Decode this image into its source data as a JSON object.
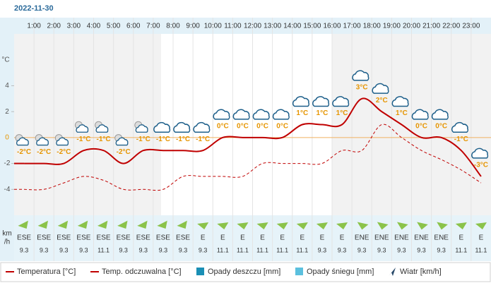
{
  "chart_data": {
    "type": "line",
    "title": "2022-11-30",
    "hour_labels": [
      "1:00",
      "2:00",
      "3:00",
      "4:00",
      "5:00",
      "6:00",
      "7:00",
      "8:00",
      "9:00",
      "10:00",
      "11:00",
      "12:00",
      "13:00",
      "14:00",
      "15:00",
      "16:00",
      "17:00",
      "18:00",
      "19:00",
      "20:00",
      "21:00",
      "22:00",
      "23:00"
    ],
    "y_label": "°C",
    "ylim": [
      -6,
      8
    ],
    "yticks": [
      -4,
      -2,
      0,
      2,
      4
    ],
    "series": [
      {
        "name": "Temperatura [°C]",
        "color": "#c00000",
        "dashed": false,
        "values": [
          -2,
          -2,
          -2,
          -1,
          -1,
          -2,
          -1,
          -1,
          -1,
          -1,
          0,
          0,
          0,
          0,
          1,
          1,
          1,
          3,
          2,
          1,
          0,
          0,
          -1,
          -3
        ],
        "value_labels": [
          "-2°C",
          "-2°C",
          "-2°C",
          "-1°C",
          "-1°C",
          "-2°C",
          "-1°C",
          "-1°C",
          "-1°C",
          "-1°C",
          "0°C",
          "0°C",
          "0°C",
          "0°C",
          "1°C",
          "1°C",
          "1°C",
          "3°C",
          "2°C",
          "1°C",
          "0°C",
          "0°C",
          "-1°C",
          "-3°C"
        ]
      },
      {
        "name": "Temp. odczuwalna [°C]",
        "color": "#c00000",
        "dashed": true,
        "values": [
          -4,
          -4,
          -3.5,
          -3,
          -3.3,
          -4,
          -4,
          -4,
          -3,
          -3,
          -3,
          -3,
          -2,
          -2,
          -2,
          -2,
          -1,
          -1,
          1,
          0,
          -1,
          -1.7,
          -2.5,
          -3.5
        ]
      }
    ],
    "legend_extra": [
      {
        "name": "Opady deszczu [mm]",
        "color": "#1a8fb5"
      },
      {
        "name": "Opady śniegu [mm]",
        "color": "#5bc0de"
      },
      {
        "name": "Wiatr [km/h]",
        "color": "#2a4a6a"
      }
    ],
    "wind": {
      "unit": [
        "km",
        "/h"
      ],
      "directions": [
        "ESE",
        "ESE",
        "ESE",
        "ESE",
        "ESE",
        "ESE",
        "ESE",
        "ESE",
        "ESE",
        "E",
        "E",
        "E",
        "E",
        "E",
        "E",
        "E",
        "E",
        "ENE",
        "ENE",
        "ENE",
        "ENE",
        "ENE",
        "E",
        "E"
      ],
      "speeds": [
        9.3,
        9.3,
        9.3,
        9.3,
        11.1,
        9.3,
        9.3,
        9.3,
        9.3,
        9.3,
        11.1,
        11.1,
        11.1,
        11.1,
        11.1,
        9.3,
        9.3,
        9.3,
        9.3,
        9.3,
        9.3,
        9.3,
        11.1,
        11.1
      ],
      "color": "#8bc34a"
    }
  }
}
